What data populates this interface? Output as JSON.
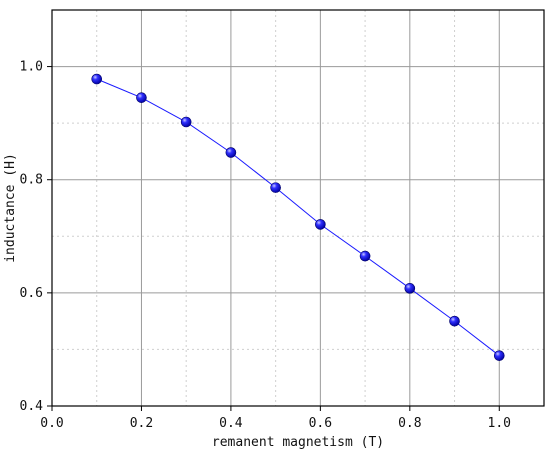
{
  "chart_data": {
    "type": "line",
    "title": "",
    "xlabel": "remanent magnetism (T)",
    "ylabel": "inductance (H)",
    "xlim": [
      0.0,
      1.1
    ],
    "ylim": [
      0.4,
      1.1
    ],
    "xticks": [
      0.0,
      0.2,
      0.4,
      0.6,
      0.8,
      1.0
    ],
    "yticks": [
      0.4,
      0.6,
      0.8,
      1.0
    ],
    "xtick_labels": [
      "0.0",
      "0.2",
      "0.4",
      "0.6",
      "0.8",
      "1.0"
    ],
    "ytick_labels": [
      "0.4",
      "0.6",
      "0.8",
      "1.0"
    ],
    "grid": "major solid gray, minor dotted light gray",
    "legend": "none",
    "series": [
      {
        "color": "#1a1aff",
        "marker": "sphere",
        "x": [
          0.1,
          0.2,
          0.3,
          0.4,
          0.5,
          0.6,
          0.7,
          0.8,
          0.9,
          1.0
        ],
        "y": [
          0.978,
          0.945,
          0.902,
          0.848,
          0.786,
          0.721,
          0.665,
          0.608,
          0.55,
          0.489
        ]
      }
    ]
  }
}
